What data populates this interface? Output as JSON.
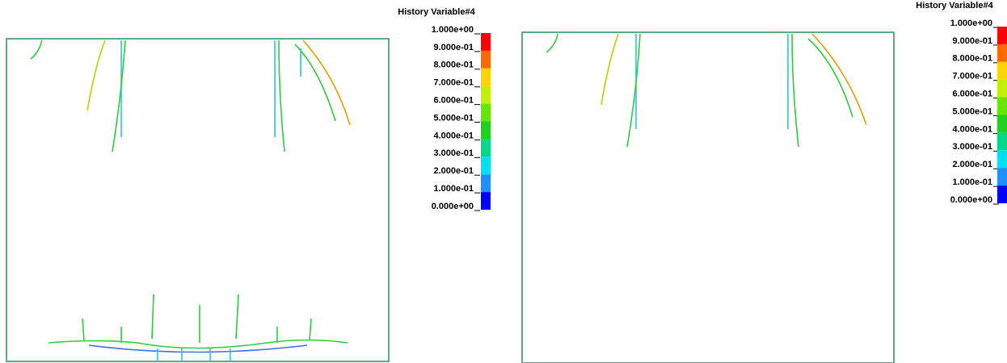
{
  "panels": [
    {
      "legend": {
        "title": "History Variable#4",
        "labels": [
          "1.000e+00",
          "9.000e-01",
          "8.000e-01",
          "7.000e-01",
          "6.000e-01",
          "5.000e-01",
          "4.000e-01",
          "3.000e-01",
          "2.000e-01",
          "1.000e-01",
          "0.000e+00"
        ]
      }
    },
    {
      "legend": {
        "title": "History Variable#4",
        "labels": [
          "1.000e+00",
          "9.000e-01",
          "8.000e-01",
          "7.000e-01",
          "6.000e-01",
          "5.000e-01",
          "4.000e-01",
          "3.000e-01",
          "2.000e-01",
          "1.000e-01",
          "0.000e+00"
        ]
      }
    }
  ]
}
